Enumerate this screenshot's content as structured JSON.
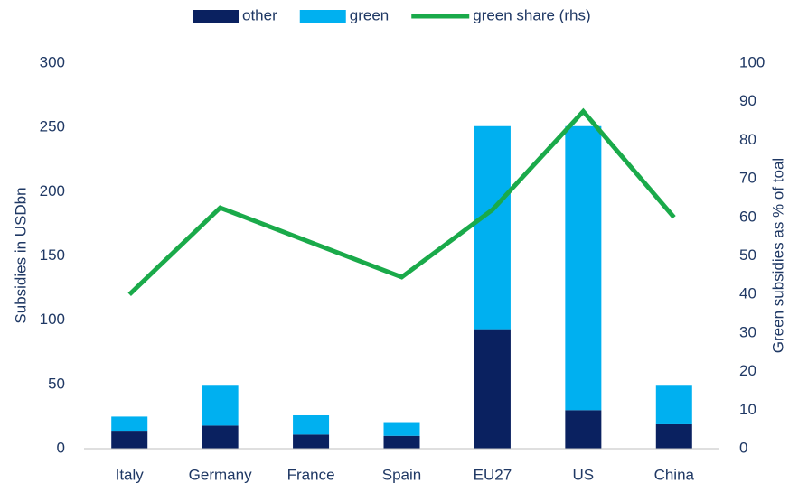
{
  "chart_data": {
    "type": "bar",
    "stacked": true,
    "categories": [
      "Italy",
      "Germany",
      "France",
      "Spain",
      "EU27",
      "US",
      "China"
    ],
    "series": [
      {
        "name": "other",
        "color": "#0a2160",
        "values": [
          14,
          18,
          11,
          10,
          93,
          30,
          19
        ]
      },
      {
        "name": "green",
        "color": "#00b0f0",
        "values": [
          11,
          31,
          15,
          10,
          158,
          221,
          30
        ]
      },
      {
        "name": "green share (rhs)",
        "type": "line",
        "axis": "y2",
        "color": "#1aaa4a",
        "values": [
          40,
          62.5,
          53.5,
          44.5,
          62,
          87.5,
          60
        ]
      }
    ],
    "ylabel": "Subsidies in USDbn",
    "y2label": "Green subsidies as % of toal",
    "ylim": [
      0,
      300
    ],
    "yticks": [
      0,
      50,
      100,
      150,
      200,
      250,
      300
    ],
    "y2lim": [
      0,
      100
    ],
    "y2ticks": [
      0,
      10,
      20,
      30,
      40,
      50,
      60,
      70,
      80,
      90,
      100
    ],
    "legend": "top"
  }
}
